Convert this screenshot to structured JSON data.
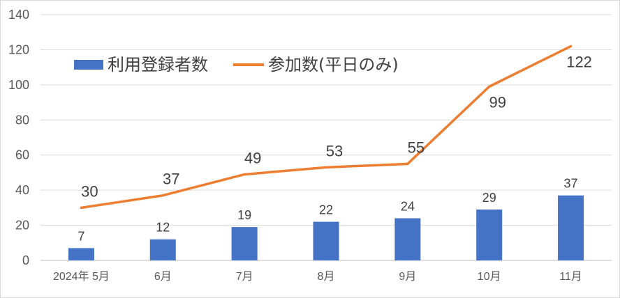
{
  "chart_data": {
    "type": "bar",
    "categories": [
      "2024年 5月",
      "6月",
      "7月",
      "8月",
      "9月",
      "10月",
      "11月"
    ],
    "series": [
      {
        "name": "利用登録者数",
        "type": "bar",
        "color": "#4472C4",
        "values": [
          7,
          12,
          19,
          22,
          24,
          29,
          37
        ]
      },
      {
        "name": "参加数(平日のみ)",
        "type": "line",
        "color": "#ED7D31",
        "values": [
          30,
          37,
          49,
          53,
          55,
          99,
          122
        ]
      }
    ],
    "ylim": [
      0,
      140
    ],
    "yticks": [
      0,
      20,
      40,
      60,
      80,
      100,
      120,
      140
    ],
    "grid": true,
    "legend": "top-left",
    "data_labels": true,
    "title": "",
    "xlabel": "",
    "ylabel": ""
  }
}
